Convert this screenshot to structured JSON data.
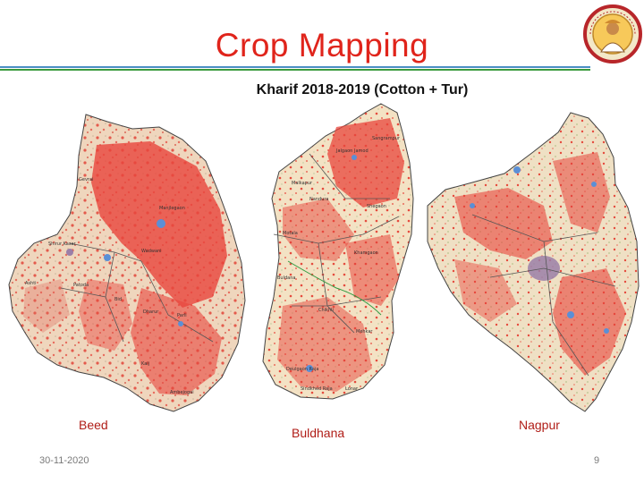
{
  "slide": {
    "title": "Crop Mapping",
    "subtitle": "Kharif 2018-2019 (Cotton + Tur)",
    "date": "30-11-2020",
    "page_number": "9"
  },
  "maps": [
    {
      "label": "Beed",
      "icon": "beed-district-map"
    },
    {
      "label": "Buldhana",
      "icon": "buldhana-district-map"
    },
    {
      "label": "Nagpur",
      "icon": "nagpur-district-map"
    }
  ],
  "colors": {
    "title": "#e0241b",
    "label": "#b01d17",
    "crop_red": "#e8453c",
    "land_beige": "#efdcc0",
    "water_blue": "#5b8fd6",
    "urban_purple": "#9b7fa8"
  }
}
